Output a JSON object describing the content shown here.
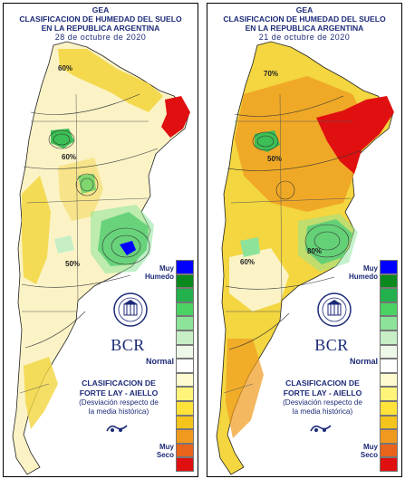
{
  "panels": [
    {
      "org": "GEA",
      "title_line1": "CLASIFICACION DE HUMEDAD DEL SUELO",
      "title_line2": "EN LA REPUBLICA ARGENTINA",
      "date": "28 de octubre de 2020",
      "contour_labels": [
        "60%",
        "60%",
        "50%"
      ],
      "blue_patch": true
    },
    {
      "org": "GEA",
      "title_line1": "CLASIFICACION DE HUMEDAD DEL SUELO",
      "title_line2": "EN LA REPUBLICA ARGENTINA",
      "date": "21 de octubre de 2020",
      "contour_labels": [
        "70%",
        "50%",
        "60%",
        "80%"
      ],
      "blue_patch": false
    }
  ],
  "legend": {
    "top_label_1": "Muy",
    "top_label_2": "Humedo",
    "middle_label": "Normal",
    "bottom_label_1": "Muy",
    "bottom_label_2": "Seco",
    "colors": [
      "#0000ff",
      "#0a8a1e",
      "#22b14c",
      "#4cd263",
      "#8de39a",
      "#c6efc6",
      "#eef8e8",
      "#ffffff",
      "#fffbd0",
      "#fff37a",
      "#ffe23a",
      "#f5c41c",
      "#ef9a1e",
      "#e8641c",
      "#e01010"
    ]
  },
  "branding": {
    "logo_text": "BCR",
    "classification_title_1": "CLASIFICACION DE",
    "classification_title_2": "FORTE LAY - AIELLO",
    "note_1": "(Desviación respecto de",
    "note_2": "la media histórica)"
  },
  "colors": {
    "header_text": "#1c2a78",
    "dry_red": "#e01010",
    "yellow": "#f3d640",
    "cream": "#fbf3c6",
    "green": "#3cbf55"
  }
}
